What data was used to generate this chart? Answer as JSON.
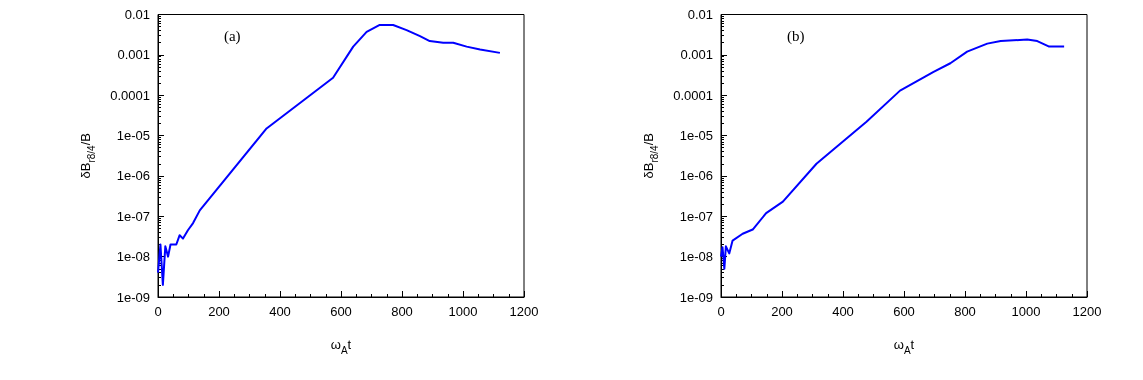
{
  "chart_data": [
    {
      "type": "line",
      "xlabel": "ω$_{A}$t",
      "ylabel": "δB$_{r8/4}$/B",
      "annotations": [
        "(a)"
      ],
      "log": "y",
      "grid": false,
      "marker": "none",
      "line_style": "solid",
      "xlim": [
        0,
        1200
      ],
      "xticks": [
        0,
        200,
        400,
        600,
        800,
        1000,
        1200
      ],
      "ylim": [
        1e-09,
        0.01
      ],
      "yticks": [
        {
          "value": 1e-09,
          "label": "1e-09"
        },
        {
          "value": 1e-08,
          "label": "1e-08"
        },
        {
          "value": 1e-07,
          "label": "1e-07"
        },
        {
          "value": 1e-06,
          "label": "1e-06"
        },
        {
          "value": 1e-05,
          "label": "1e-05"
        },
        {
          "value": 0.0001,
          "label": "0.0001"
        },
        {
          "value": 0.001,
          "label": "0.001"
        },
        {
          "value": 0.01,
          "label": "0.01"
        }
      ],
      "series": [
        {
          "color": "#0000ff",
          "x": [
            0,
            8,
            16,
            24,
            33,
            41,
            60,
            71,
            82,
            98,
            115,
            137,
            356,
            574,
            640,
            684,
            727,
            771,
            815,
            859,
            891,
            935,
            968,
            1012,
            1056,
            1121
          ],
          "values": [
            4e-09,
            2e-08,
            2e-09,
            1.8e-08,
            1e-08,
            2e-08,
            2e-08,
            3.4e-08,
            2.8e-08,
            4.5e-08,
            6.8e-08,
            1.4e-07,
            1.5e-05,
            0.00027,
            0.0016,
            0.0037,
            0.0055,
            0.0055,
            0.0041,
            0.0029,
            0.0022,
            0.002,
            0.002,
            0.0016,
            0.00135,
            0.00112
          ]
        }
      ]
    },
    {
      "type": "line",
      "xlabel": "ω$_{A}$t",
      "ylabel": "δB$_{r8/4}$/B",
      "annotations": [
        "(b)"
      ],
      "log": "y",
      "grid": false,
      "marker": "none",
      "line_style": "solid",
      "xlim": [
        0,
        1200
      ],
      "xticks": [
        0,
        200,
        400,
        600,
        800,
        1000,
        1200
      ],
      "ylim": [
        1e-09,
        0.01
      ],
      "yticks": [
        {
          "value": 1e-09,
          "label": "1e-09"
        },
        {
          "value": 1e-08,
          "label": "1e-08"
        },
        {
          "value": 1e-07,
          "label": "1e-07"
        },
        {
          "value": 1e-06,
          "label": "1e-06"
        },
        {
          "value": 1e-05,
          "label": "1e-05"
        },
        {
          "value": 0.0001,
          "label": "0.0001"
        },
        {
          "value": 0.001,
          "label": "0.001"
        },
        {
          "value": 0.01,
          "label": "0.01"
        }
      ],
      "series": [
        {
          "color": "#0000ff",
          "x": [
            0,
            5,
            11,
            16,
            27,
            38,
            71,
            104,
            148,
            203,
            313,
            477,
            587,
            697,
            752,
            807,
            873,
            917,
            1004,
            1037,
            1076,
            1125
          ],
          "values": [
            1e-08,
            1.7e-08,
            5e-09,
            1.8e-08,
            1.2e-08,
            2.5e-08,
            3.7e-08,
            4.7e-08,
            1.2e-07,
            2.3e-07,
            2e-06,
            2.2e-05,
            0.00013,
            0.00038,
            0.00062,
            0.0012,
            0.0019,
            0.0022,
            0.0024,
            0.0022,
            0.0016,
            0.0016
          ]
        }
      ]
    }
  ]
}
